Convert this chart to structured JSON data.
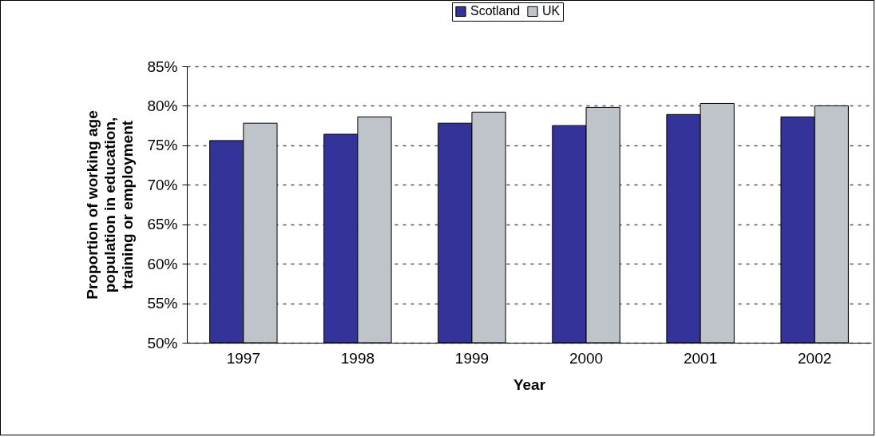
{
  "chart_data": {
    "type": "bar",
    "xlabel": "Year",
    "ylabel": "Proportion of working age\npopulation in education,\ntraining or employment",
    "categories": [
      "1997",
      "1998",
      "1999",
      "2000",
      "2001",
      "2002"
    ],
    "series": [
      {
        "name": "Scotland",
        "color": "#333399",
        "values": [
          75.6,
          76.4,
          77.8,
          77.5,
          78.9,
          78.6
        ]
      },
      {
        "name": "UK",
        "color": "#bfc3ca",
        "values": [
          77.8,
          78.6,
          79.2,
          79.8,
          80.3,
          80.0
        ]
      }
    ],
    "ylim": [
      50,
      85
    ],
    "yticks": [
      {
        "value": 50,
        "label": "50%"
      },
      {
        "value": 55,
        "label": "55%"
      },
      {
        "value": 60,
        "label": "60%"
      },
      {
        "value": 65,
        "label": "65%"
      },
      {
        "value": 70,
        "label": "70%"
      },
      {
        "value": 75,
        "label": "75%"
      },
      {
        "value": 80,
        "label": "80%"
      },
      {
        "value": 85,
        "label": "85%"
      }
    ],
    "grid": "y",
    "legend": "top",
    "line_style": "dashed"
  }
}
